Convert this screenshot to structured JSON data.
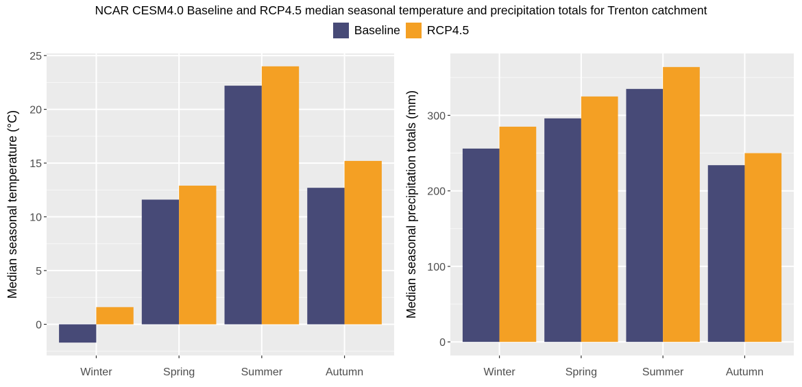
{
  "title": "NCAR CESM4.0 Baseline and RCP4.5 median seasonal temperature and precipitation totals for Trenton catchment",
  "legend": [
    {
      "label": "Baseline",
      "color": "#474a77"
    },
    {
      "label": "RCP4.5",
      "color": "#f4a024"
    }
  ],
  "chart_data": [
    {
      "type": "bar",
      "categories": [
        "Winter",
        "Spring",
        "Summer",
        "Autumn"
      ],
      "series": [
        {
          "name": "Baseline",
          "values": [
            -1.7,
            11.6,
            22.2,
            12.7
          ]
        },
        {
          "name": "RCP4.5",
          "values": [
            1.6,
            12.9,
            24.0,
            15.2
          ]
        }
      ],
      "xlabel": "",
      "ylabel": "Median seasonal temperature (°C)",
      "ylim": [
        -2.9,
        25.2
      ],
      "yticks": [
        0,
        5,
        10,
        15,
        20,
        25
      ],
      "grid": true,
      "legend": "top"
    },
    {
      "type": "bar",
      "categories": [
        "Winter",
        "Spring",
        "Summer",
        "Autumn"
      ],
      "series": [
        {
          "name": "Baseline",
          "values": [
            256,
            296,
            335,
            234
          ]
        },
        {
          "name": "RCP4.5",
          "values": [
            285,
            325,
            364,
            250
          ]
        }
      ],
      "xlabel": "",
      "ylabel": "Median seasonal precipitation totals (mm)",
      "ylim": [
        -18,
        382
      ],
      "yticks": [
        0,
        100,
        200,
        300
      ],
      "grid": true,
      "legend": "top"
    }
  ]
}
